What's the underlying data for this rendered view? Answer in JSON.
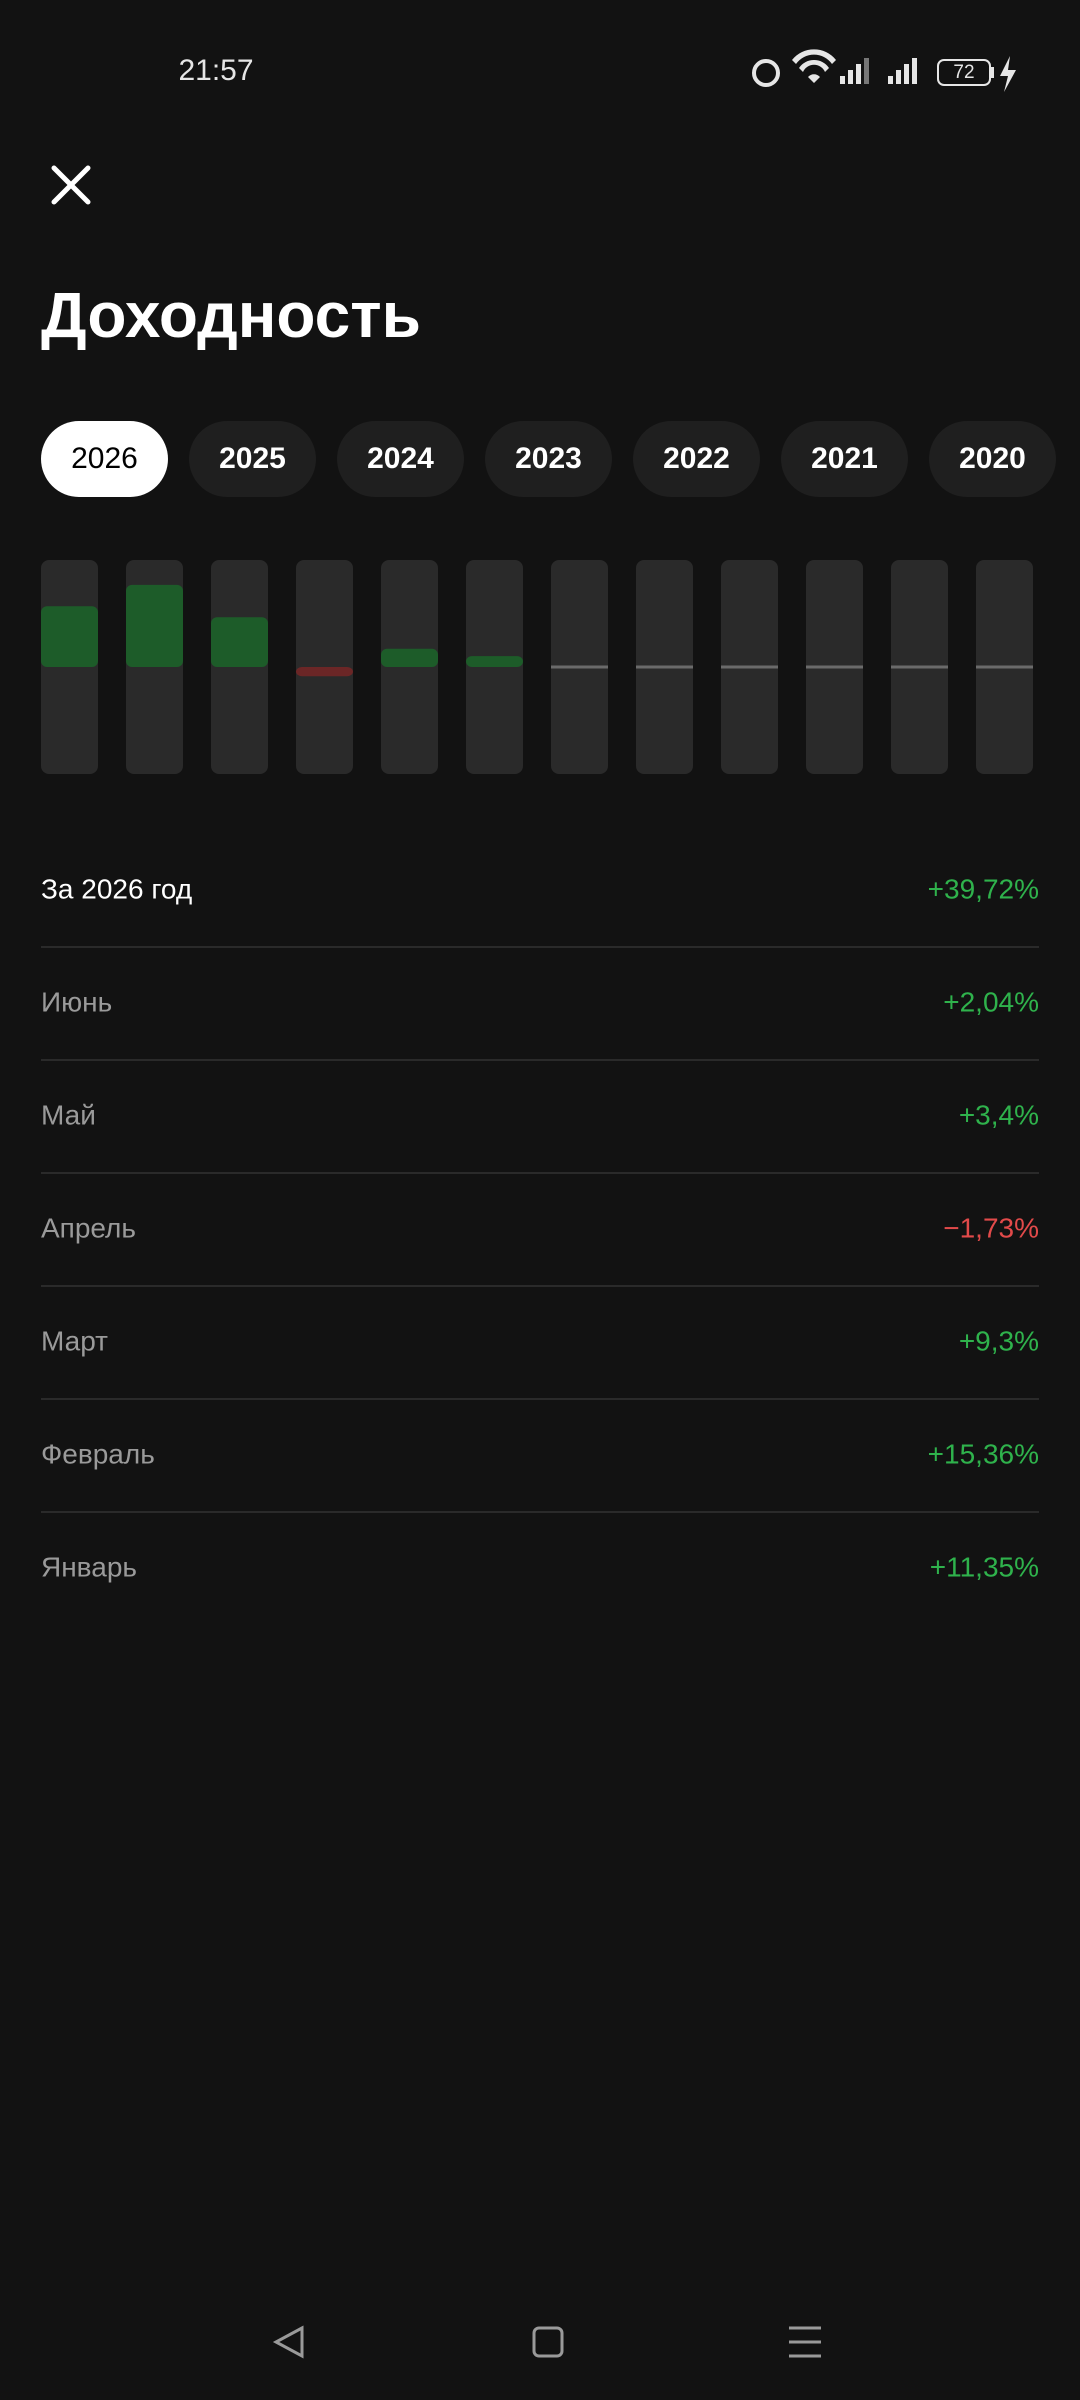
{
  "status_bar": {
    "time": "21:57",
    "battery": "72"
  },
  "header": {
    "title": "Доходность"
  },
  "year_tabs": [
    "2026",
    "2025",
    "2024",
    "2023",
    "2022",
    "2021",
    "2020"
  ],
  "chart": {
    "type": "bar",
    "values": [
      11.35,
      15.36,
      9.3,
      -1.73,
      3.4,
      2.04,
      null,
      null,
      null,
      null,
      null,
      null
    ],
    "ylim": [
      -20,
      20
    ],
    "positive_color": "#1d5c29",
    "negative_color": "#6b2626"
  },
  "summary": {
    "label": "За 2026 год",
    "value": "+39,72%"
  },
  "rows": [
    {
      "label": "Июнь",
      "value": "+2,04%"
    },
    {
      "label": "Май",
      "value": "+3,4%"
    },
    {
      "label": "Апрель",
      "value": "−1,73%"
    },
    {
      "label": "Март",
      "value": "+9,3%"
    },
    {
      "label": "Февраль",
      "value": "+15,36%"
    },
    {
      "label": "Январь",
      "value": "+11,35%"
    }
  ]
}
